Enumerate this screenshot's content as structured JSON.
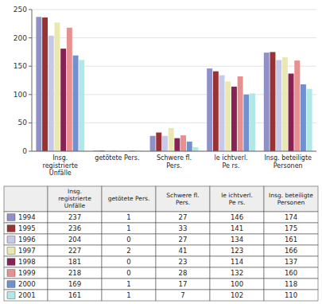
{
  "chart_data": {
    "type": "bar",
    "categories": [
      "Insg.\nregistrierte\nUnfälle",
      "getötete Pers.",
      "Schwere fl.\nPers.",
      "le ichtverl.\nPe rs.",
      "Insg. beteiligte\nPersonen"
    ],
    "series": [
      {
        "name": "1994",
        "color": "#9090c8",
        "values": [
          237,
          1,
          27,
          146,
          174
        ]
      },
      {
        "name": "1995",
        "color": "#993333",
        "values": [
          236,
          1,
          33,
          141,
          175
        ]
      },
      {
        "name": "1996",
        "color": "#c8c8e8",
        "values": [
          204,
          0,
          27,
          134,
          161
        ]
      },
      {
        "name": "1997",
        "color": "#e8e8b0",
        "values": [
          227,
          2,
          41,
          123,
          166
        ]
      },
      {
        "name": "1998",
        "color": "#882255",
        "values": [
          181,
          0,
          23,
          114,
          137
        ]
      },
      {
        "name": "1999",
        "color": "#e89090",
        "values": [
          218,
          0,
          28,
          132,
          160
        ]
      },
      {
        "name": "2000",
        "color": "#7090d0",
        "values": [
          169,
          1,
          17,
          100,
          118
        ]
      },
      {
        "name": "2001",
        "color": "#b0e8e8",
        "values": [
          161,
          1,
          7,
          102,
          110
        ]
      }
    ],
    "ylim": [
      0,
      250
    ],
    "yticks": [
      0,
      50,
      100,
      150,
      200,
      250
    ],
    "grid": true
  }
}
